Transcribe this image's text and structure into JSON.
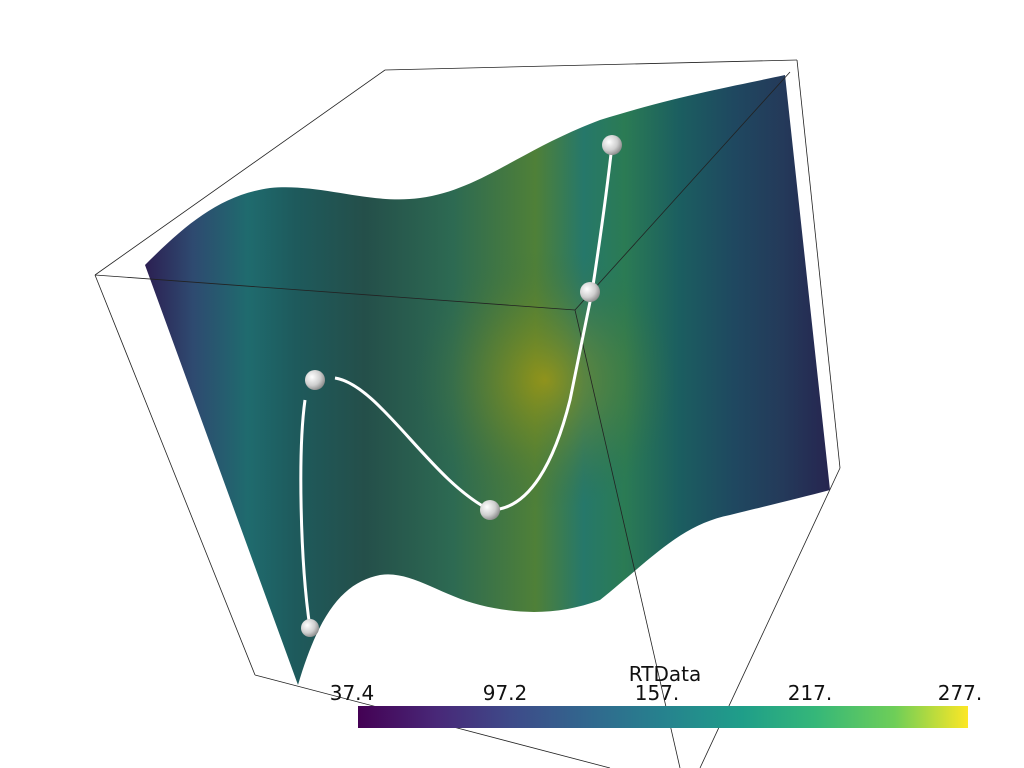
{
  "scalar_bar": {
    "title": "RTData",
    "labels": [
      "37.4",
      "97.2",
      "157.",
      "217.",
      "277."
    ]
  }
}
